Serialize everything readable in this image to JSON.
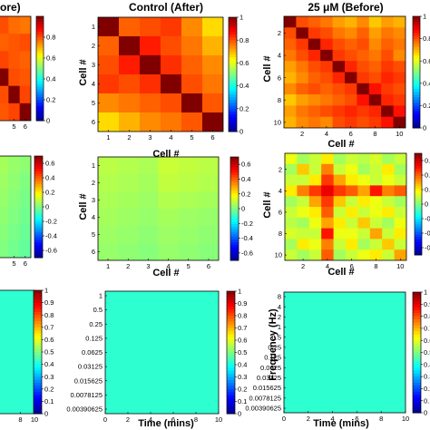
{
  "colors": {
    "jet": [
      "#00008f",
      "#0000ff",
      "#0080ff",
      "#00ffff",
      "#80ff80",
      "#ffff00",
      "#ff8000",
      "#ff0000",
      "#800000"
    ],
    "coi_line": "#ffffff",
    "grid_line": "#000000"
  },
  "figure": {
    "column_titles": {
      "left_partial": "ore)",
      "middle": "Control (After)",
      "right": "25 μM (Before)"
    }
  },
  "chart_data": [
    {
      "id": "A_left_corr",
      "type": "heatmap",
      "title": "",
      "xlabel": "",
      "ylabel": "",
      "n": 6,
      "x_ticks": [
        "5",
        "6"
      ],
      "colorbar": {
        "ticks": [
          "0.8",
          "0.6",
          "0.4",
          "0.2",
          "0"
        ],
        "range": [
          0,
          1
        ]
      },
      "values": [
        [
          1.0,
          0.82,
          0.78,
          0.8,
          0.77,
          0.76
        ],
        [
          0.82,
          1.0,
          0.8,
          0.78,
          0.79,
          0.8
        ],
        [
          0.78,
          0.8,
          1.0,
          0.81,
          0.79,
          0.78
        ],
        [
          0.8,
          0.78,
          0.81,
          1.0,
          0.8,
          0.79
        ],
        [
          0.77,
          0.79,
          0.79,
          0.8,
          1.0,
          0.81
        ],
        [
          0.76,
          0.8,
          0.78,
          0.79,
          0.81,
          1.0
        ]
      ]
    },
    {
      "id": "B_control_after",
      "type": "heatmap",
      "title": "Control (After)",
      "xlabel": "Cell #",
      "ylabel": "Cell #",
      "n": 6,
      "x_ticks": [
        "1",
        "2",
        "3",
        "4",
        "5",
        "6"
      ],
      "y_ticks": [
        "1",
        "2",
        "3",
        "4",
        "5",
        "6"
      ],
      "colorbar": {
        "ticks": [
          "1",
          "0.8",
          "0.6",
          "0.4",
          "0.2",
          "0"
        ],
        "range": [
          0,
          1
        ]
      },
      "values": [
        [
          1.0,
          0.78,
          0.8,
          0.82,
          0.74,
          0.66
        ],
        [
          0.78,
          1.0,
          0.85,
          0.8,
          0.76,
          0.7
        ],
        [
          0.8,
          0.85,
          1.0,
          0.83,
          0.78,
          0.74
        ],
        [
          0.82,
          0.8,
          0.83,
          1.0,
          0.8,
          0.76
        ],
        [
          0.74,
          0.76,
          0.78,
          0.8,
          1.0,
          0.79
        ],
        [
          0.66,
          0.7,
          0.74,
          0.76,
          0.79,
          1.0
        ]
      ]
    },
    {
      "id": "C_25uM_before",
      "type": "heatmap",
      "title": "25 μM (Before)",
      "xlabel": "Cell #",
      "ylabel": "Cell #",
      "n": 10,
      "x_ticks": [
        "2",
        "4",
        "6",
        "8",
        "10"
      ],
      "y_ticks": [
        "2",
        "4",
        "6",
        "8",
        "10"
      ],
      "colorbar": {
        "ticks": [
          "1",
          "0.8",
          "0.6",
          "0.4",
          "0.2",
          "0"
        ],
        "range": [
          0,
          1
        ]
      },
      "values": [
        [
          1.0,
          0.8,
          0.78,
          0.76,
          0.72,
          0.7,
          0.74,
          0.68,
          0.72,
          0.7
        ],
        [
          0.8,
          1.0,
          0.82,
          0.8,
          0.76,
          0.74,
          0.78,
          0.72,
          0.76,
          0.74
        ],
        [
          0.78,
          0.82,
          1.0,
          0.84,
          0.8,
          0.78,
          0.8,
          0.74,
          0.78,
          0.76
        ],
        [
          0.76,
          0.8,
          0.84,
          1.0,
          0.82,
          0.8,
          0.78,
          0.76,
          0.8,
          0.74
        ],
        [
          0.72,
          0.76,
          0.8,
          0.82,
          1.0,
          0.84,
          0.8,
          0.78,
          0.82,
          0.8
        ],
        [
          0.7,
          0.74,
          0.78,
          0.8,
          0.84,
          1.0,
          0.82,
          0.8,
          0.84,
          0.82
        ],
        [
          0.74,
          0.78,
          0.8,
          0.78,
          0.8,
          0.82,
          1.0,
          0.86,
          0.82,
          0.8
        ],
        [
          0.68,
          0.72,
          0.74,
          0.76,
          0.78,
          0.8,
          0.86,
          1.0,
          0.84,
          0.82
        ],
        [
          0.72,
          0.76,
          0.78,
          0.8,
          0.82,
          0.84,
          0.82,
          0.84,
          1.0,
          0.86
        ],
        [
          0.7,
          0.74,
          0.76,
          0.74,
          0.8,
          0.82,
          0.8,
          0.82,
          0.86,
          1.0
        ]
      ]
    },
    {
      "id": "D_left_partial",
      "type": "heatmap",
      "title": "",
      "xlabel": "",
      "ylabel": "",
      "n": 6,
      "x_ticks": [
        "5",
        "6"
      ],
      "colorbar": {
        "ticks": [
          "0.6",
          "0.4",
          "0.2",
          "0",
          "-0.2",
          "-0.4",
          "-0.6"
        ],
        "range": [
          -0.7,
          0.7
        ]
      },
      "values": [
        [
          0.15,
          0.12,
          0.08,
          0.05,
          0.03,
          0.02
        ],
        [
          0.12,
          0.1,
          0.06,
          0.04,
          0.02,
          0.0
        ],
        [
          0.1,
          0.08,
          0.05,
          0.03,
          0.01,
          -0.01
        ],
        [
          0.08,
          0.06,
          0.04,
          0.02,
          0.0,
          -0.02
        ],
        [
          0.06,
          0.05,
          0.03,
          0.01,
          -0.01,
          -0.03
        ],
        [
          0.05,
          0.04,
          0.02,
          0.0,
          -0.02,
          -0.04
        ]
      ]
    },
    {
      "id": "E_control_partial",
      "type": "heatmap",
      "title": "",
      "xlabel": "Cell #",
      "ylabel": "Cell #",
      "n": 6,
      "x_ticks": [
        "1",
        "2",
        "3",
        "4",
        "5",
        "6"
      ],
      "y_ticks": [
        "1",
        "2",
        "3",
        "4",
        "5",
        "6"
      ],
      "colorbar": {
        "ticks": [
          "0.6",
          "0.4",
          "0.2",
          "0",
          "-0.2",
          "-0.4",
          "-0.6"
        ],
        "range": [
          -0.7,
          0.7
        ]
      },
      "values": [
        [
          0.08,
          0.07,
          0.06,
          0.1,
          0.09,
          0.08
        ],
        [
          0.07,
          0.06,
          0.05,
          0.09,
          0.08,
          0.07
        ],
        [
          0.06,
          0.05,
          0.04,
          0.07,
          0.06,
          0.05
        ],
        [
          0.05,
          0.04,
          0.03,
          0.05,
          0.04,
          0.03
        ],
        [
          0.04,
          0.03,
          0.02,
          0.04,
          0.03,
          0.02
        ],
        [
          0.03,
          0.02,
          0.01,
          0.03,
          0.02,
          0.01
        ]
      ]
    },
    {
      "id": "F_25uM_partial",
      "type": "heatmap",
      "title": "",
      "xlabel": "Cell #",
      "ylabel": "Cell #",
      "n": 10,
      "x_ticks": [
        "2",
        "4",
        "6",
        "8",
        "10"
      ],
      "y_ticks": [
        "2",
        "4",
        "6",
        "8",
        "10"
      ],
      "colorbar": {
        "ticks": [
          "0.6",
          "0.4",
          "0.2",
          "0",
          "-0.2",
          "-0.4",
          "-0.6"
        ],
        "range": [
          -0.7,
          0.7
        ]
      },
      "values": [
        [
          0.15,
          0.05,
          0.1,
          0.2,
          0.05,
          0.1,
          0.08,
          0.12,
          0.05,
          0.1
        ],
        [
          0.05,
          0.25,
          0.1,
          0.35,
          0.1,
          0.15,
          0.05,
          0.1,
          0.2,
          0.05
        ],
        [
          0.1,
          0.1,
          0.2,
          0.45,
          0.3,
          0.2,
          0.15,
          0.1,
          0.15,
          0.1
        ],
        [
          0.2,
          0.35,
          0.45,
          0.55,
          0.45,
          0.4,
          0.3,
          0.5,
          0.35,
          0.4
        ],
        [
          0.05,
          0.1,
          0.3,
          0.45,
          0.25,
          0.1,
          0.2,
          0.15,
          0.1,
          0.05
        ],
        [
          0.1,
          0.15,
          0.2,
          0.4,
          0.1,
          0.2,
          0.1,
          0.15,
          0.2,
          0.1
        ],
        [
          0.08,
          0.05,
          0.15,
          0.3,
          0.2,
          0.1,
          0.25,
          0.1,
          0.05,
          0.15
        ],
        [
          0.12,
          0.1,
          0.1,
          0.5,
          0.15,
          0.15,
          0.1,
          0.3,
          0.1,
          0.2
        ],
        [
          0.05,
          0.2,
          0.15,
          0.35,
          0.1,
          0.2,
          0.05,
          0.1,
          0.25,
          0.1
        ],
        [
          0.1,
          0.05,
          0.1,
          0.4,
          0.05,
          0.1,
          0.15,
          0.2,
          0.1,
          0.3
        ]
      ]
    },
    {
      "id": "G_left_wavelet",
      "type": "heatmap",
      "title": "",
      "xlabel": "",
      "ylabel": "",
      "x_ticks": [
        "8",
        "10"
      ],
      "colorbar": {
        "ticks": [
          "1",
          "0.9",
          "0.8",
          "0.7",
          "0.6",
          "0.5",
          "0.4",
          "0.3",
          "0.2",
          "0.1",
          "0"
        ],
        "range": [
          0,
          1
        ]
      }
    },
    {
      "id": "H_control_wavelet",
      "type": "heatmap",
      "title": "",
      "xlabel": "Time (mins)",
      "ylabel": "",
      "x_ticks": [
        "0",
        "2",
        "4",
        "6",
        "8",
        "10"
      ],
      "y_ticks": [
        "1",
        "0.5",
        "0.25",
        "0.125",
        "0.0625",
        "0.03125",
        "0.015625",
        "0.0078125",
        "0.00390625"
      ],
      "colorbar": {
        "ticks": [
          "1",
          "0.9",
          "0.8",
          "0.7",
          "0.6",
          "0.5",
          "0.4",
          "0.3",
          "0.2",
          "0.1",
          "0"
        ],
        "range": [
          0,
          1
        ]
      }
    },
    {
      "id": "I_25uM_wavelet",
      "type": "heatmap",
      "title": "",
      "xlabel": "Time (mins)",
      "ylabel": "Frequency (Hz)",
      "x_ticks": [
        "0",
        "2",
        "4",
        "6",
        "8",
        "10"
      ],
      "y_ticks": [
        "8",
        "4",
        "2",
        "1",
        "0.5",
        "0.25",
        "0.125",
        "0.0625",
        "0.03125",
        "0.015625",
        "0.0078125",
        "0.00390625"
      ],
      "colorbar": {
        "ticks": [
          "1",
          "0.9",
          "0.8",
          "0.7",
          "0.6",
          "0.5",
          "0.4",
          "0.3",
          "0.2",
          "0.1",
          "0"
        ],
        "range": [
          0,
          1
        ]
      }
    }
  ]
}
